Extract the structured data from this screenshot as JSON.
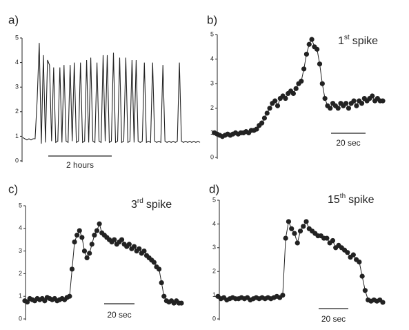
{
  "chart_data": [
    {
      "type": "line",
      "label": "a)",
      "color": "#222",
      "ylim": [
        0,
        5
      ],
      "yticks": [
        0,
        1,
        2,
        3,
        4,
        5
      ],
      "scale_bar": "2 hours",
      "values": [
        0.95,
        0.9,
        0.85,
        0.9,
        0.85,
        0.9,
        0.9,
        2.5,
        4.8,
        0.7,
        4.3,
        0.75,
        4.1,
        3.9,
        0.8,
        3.8,
        0.75,
        0.8,
        3.8,
        0.75,
        3.9,
        0.8,
        0.75,
        3.9,
        0.8,
        4.0,
        0.75,
        0.8,
        4.0,
        0.75,
        0.8,
        4.1,
        0.75,
        4.2,
        0.8,
        0.75,
        4.0,
        0.8,
        0.75,
        4.3,
        0.8,
        4.3,
        0.75,
        0.8,
        4.4,
        0.75,
        0.8,
        4.2,
        0.75,
        0.8,
        4.2,
        0.75,
        0.8,
        4.1,
        0.75,
        4.1,
        0.8,
        0.75,
        0.8,
        4.0,
        0.75,
        0.8,
        0.75,
        4.0,
        0.8,
        0.75,
        0.8,
        0.75,
        3.9,
        0.8,
        0.75,
        0.8,
        0.75,
        0.8,
        0.75,
        0.8,
        4.0,
        0.8,
        0.75,
        0.8,
        0.75,
        0.8,
        0.75,
        0.8,
        0.75,
        0.8,
        0.75
      ]
    },
    {
      "type": "line",
      "markers": true,
      "label": "b)",
      "color": "#222",
      "ylim": [
        0,
        5
      ],
      "yticks": [
        0,
        1,
        2,
        3,
        4,
        5
      ],
      "scale_bar": "20 sec",
      "annotation": {
        "number": "1",
        "suffix": "st",
        "text": "spike"
      },
      "values": [
        1.0,
        0.95,
        0.9,
        0.85,
        0.9,
        0.95,
        0.9,
        0.95,
        1.0,
        0.95,
        1.0,
        1.0,
        1.05,
        1.0,
        1.1,
        1.1,
        1.15,
        1.3,
        1.4,
        1.6,
        1.8,
        2.0,
        2.2,
        2.3,
        2.1,
        2.4,
        2.5,
        2.4,
        2.6,
        2.7,
        2.6,
        2.8,
        3.0,
        3.1,
        3.6,
        4.2,
        4.6,
        4.8,
        4.5,
        4.4,
        3.8,
        3.0,
        2.4,
        2.1,
        2.0,
        2.2,
        2.1,
        2.0,
        2.2,
        2.1,
        2.2,
        2.0,
        2.2,
        2.3,
        2.1,
        2.3,
        2.2,
        2.4,
        2.3,
        2.4,
        2.5,
        2.3,
        2.4,
        2.3,
        2.3
      ]
    },
    {
      "type": "line",
      "markers": true,
      "label": "c)",
      "color": "#222",
      "ylim": [
        0,
        5
      ],
      "yticks": [
        0,
        1,
        2,
        3,
        4,
        5
      ],
      "scale_bar": "20 sec",
      "annotation": {
        "number": "3",
        "suffix": "rd",
        "text": "spike"
      },
      "values": [
        0.8,
        0.75,
        0.9,
        0.85,
        0.8,
        0.9,
        0.85,
        0.9,
        0.8,
        0.95,
        0.9,
        0.85,
        0.9,
        0.8,
        0.85,
        0.9,
        0.85,
        0.95,
        1.0,
        2.2,
        3.4,
        3.7,
        3.9,
        3.6,
        3.0,
        2.7,
        2.9,
        3.3,
        3.7,
        3.9,
        4.2,
        3.8,
        3.7,
        3.6,
        3.5,
        3.4,
        3.5,
        3.3,
        3.4,
        3.5,
        3.3,
        3.2,
        3.3,
        3.1,
        3.2,
        3.0,
        3.1,
        2.9,
        3.0,
        2.8,
        2.7,
        2.6,
        2.5,
        2.3,
        2.2,
        1.6,
        1.0,
        0.8,
        0.75,
        0.8,
        0.7,
        0.8,
        0.7,
        0.7
      ]
    },
    {
      "type": "line",
      "markers": true,
      "label": "d)",
      "color": "#222",
      "ylim": [
        0,
        5
      ],
      "yticks": [
        0,
        1,
        2,
        3,
        4,
        5
      ],
      "scale_bar": "20 sec",
      "annotation": {
        "number": "15",
        "suffix": "th",
        "text": "spike"
      },
      "values": [
        0.95,
        0.85,
        0.9,
        0.8,
        0.85,
        0.9,
        0.85,
        0.85,
        0.9,
        0.85,
        0.9,
        0.8,
        0.85,
        0.9,
        0.85,
        0.9,
        0.85,
        0.9,
        0.85,
        0.9,
        0.95,
        0.9,
        1.0,
        3.4,
        4.1,
        3.8,
        3.6,
        3.2,
        3.7,
        3.9,
        4.1,
        3.8,
        3.7,
        3.6,
        3.5,
        3.5,
        3.4,
        3.4,
        3.2,
        3.3,
        3.0,
        3.1,
        3.0,
        2.9,
        2.8,
        2.6,
        2.7,
        2.5,
        2.4,
        1.8,
        1.2,
        0.8,
        0.75,
        0.8,
        0.75,
        0.8,
        0.7
      ]
    }
  ]
}
